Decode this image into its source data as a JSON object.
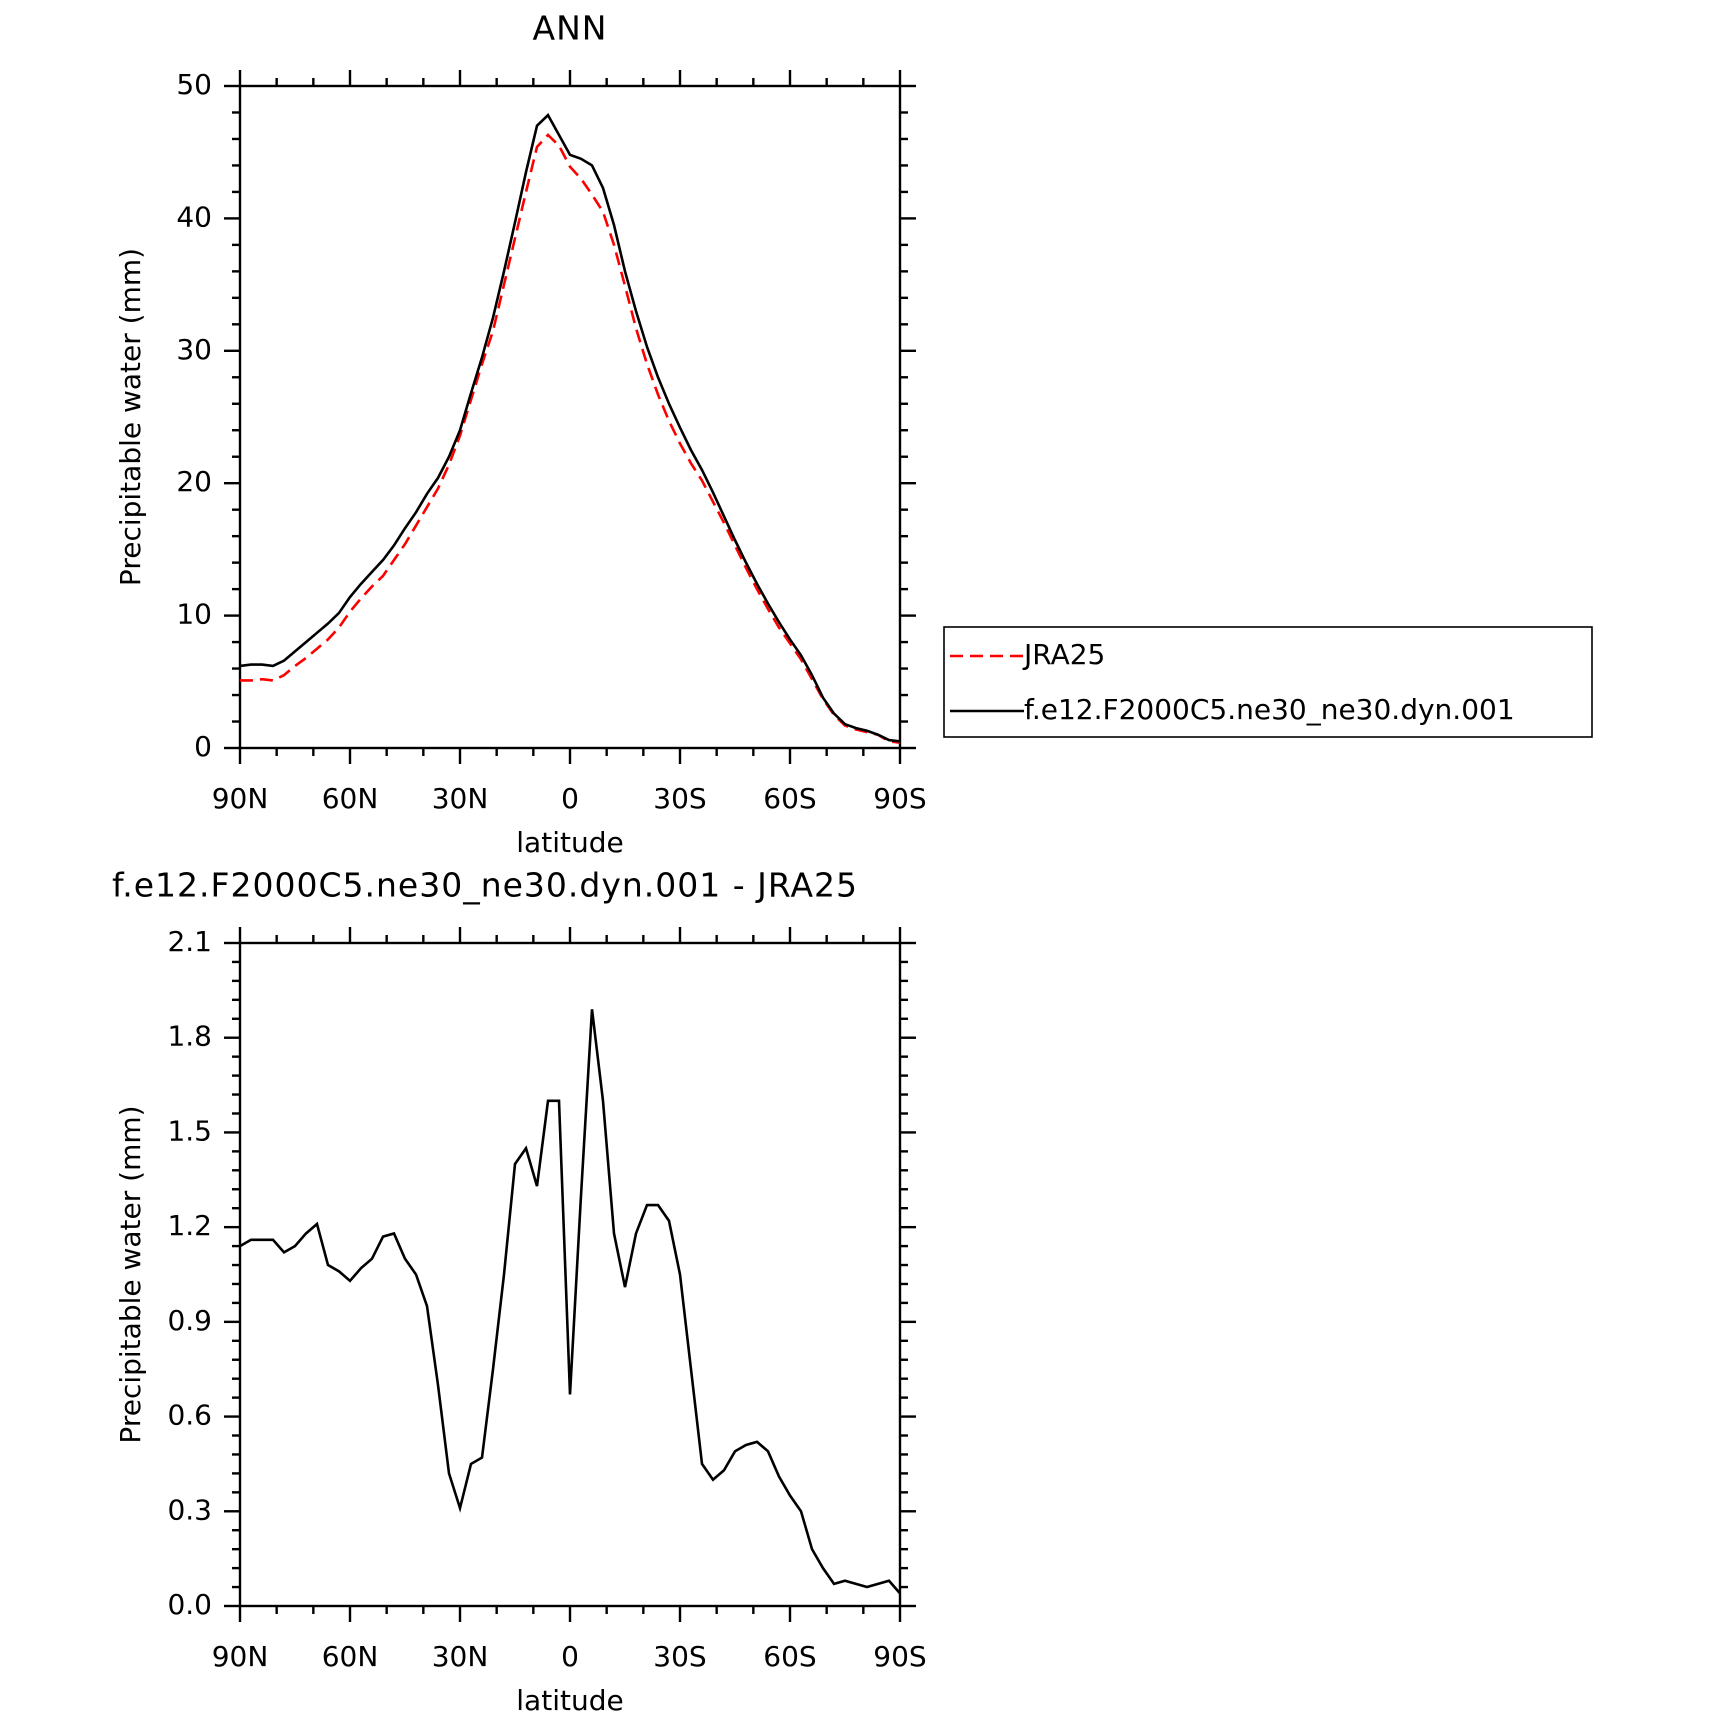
{
  "chart_data": [
    {
      "type": "line",
      "title": "ANN",
      "xlabel": "latitude",
      "ylabel": "Precipitable water (mm)",
      "x": [
        90,
        87,
        84,
        81,
        78,
        75,
        72,
        69,
        66,
        63,
        60,
        57,
        54,
        51,
        48,
        45,
        42,
        39,
        36,
        33,
        30,
        27,
        24,
        21,
        18,
        15,
        12,
        9,
        6,
        3,
        0,
        -3,
        -6,
        -9,
        -12,
        -15,
        -18,
        -21,
        -24,
        -27,
        -30,
        -33,
        -36,
        -39,
        -42,
        -45,
        -48,
        -51,
        -54,
        -57,
        -60,
        -63,
        -66,
        -69,
        -72,
        -75,
        -78,
        -81,
        -84,
        -87,
        -90
      ],
      "xlim": [
        90,
        -90
      ],
      "xticks": [
        {
          "value": 90,
          "label": "90N"
        },
        {
          "value": 60,
          "label": "60N"
        },
        {
          "value": 30,
          "label": "30N"
        },
        0,
        {
          "value": -30,
          "label": "30S"
        },
        {
          "value": -60,
          "label": "60S"
        },
        {
          "value": -90,
          "label": "90S"
        }
      ],
      "ylim": [
        0,
        50
      ],
      "yticks": [
        0,
        10,
        20,
        30,
        40,
        50
      ],
      "legend": "right",
      "series": [
        {
          "name": "JRA25",
          "color": "#ff0000",
          "dash": true,
          "values": [
            5.1,
            5.1,
            5.2,
            5.1,
            5.5,
            6.2,
            6.8,
            7.5,
            8.2,
            9.1,
            10.3,
            11.3,
            12.2,
            13.0,
            14.2,
            15.4,
            16.8,
            18.2,
            19.6,
            21.4,
            23.6,
            26.3,
            29.0,
            31.5,
            35,
            38.5,
            42,
            45.4,
            46.3,
            45.5,
            43.9,
            43.0,
            41.8,
            40.5,
            38,
            34.9,
            31.7,
            29,
            26.7,
            24.7,
            23.0,
            21.5,
            20.2,
            18.6,
            17.0,
            15.3,
            13.6,
            12.0,
            10.5,
            9.1,
            7.9,
            6.7,
            5.2,
            3.7,
            2.5,
            1.7,
            1.4,
            1.2,
            1.0,
            0.5,
            0.4
          ]
        },
        {
          "name": "f.e12.F2000C5.ne30_ne30.dyn.001",
          "color": "#000000",
          "dash": false,
          "values": [
            6.2,
            6.3,
            6.3,
            6.2,
            6.6,
            7.3,
            8.0,
            8.7,
            9.4,
            10.2,
            11.4,
            12.4,
            13.3,
            14.2,
            15.3,
            16.6,
            17.8,
            19.2,
            20.4,
            22.0,
            24.0,
            26.8,
            29.5,
            32.5,
            36,
            39.7,
            43.5,
            47.0,
            47.8,
            46.3,
            44.8,
            44.5,
            44.0,
            42.3,
            39.5,
            36.0,
            33.0,
            30.3,
            28.0,
            26.0,
            24.2,
            22.5,
            21.0,
            19.3,
            17.5,
            15.7,
            14.0,
            12.4,
            10.9,
            9.5,
            8.2,
            7.0,
            5.5,
            3.8,
            2.6,
            1.8,
            1.5,
            1.3,
            1.0,
            0.6,
            0.5
          ]
        }
      ]
    },
    {
      "type": "line",
      "title": "f.e12.F2000C5.ne30_ne30.dyn.001 - JRA25",
      "xlabel": "latitude",
      "ylabel": "Precipitable water (mm)",
      "x": [
        90,
        87,
        84,
        81,
        78,
        75,
        72,
        69,
        66,
        63,
        60,
        57,
        54,
        51,
        48,
        45,
        42,
        39,
        36,
        33,
        30,
        27,
        24,
        21,
        18,
        15,
        12,
        9,
        6,
        3,
        0,
        -3,
        -6,
        -9,
        -12,
        -15,
        -18,
        -21,
        -24,
        -27,
        -30,
        -33,
        -36,
        -39,
        -42,
        -45,
        -48,
        -51,
        -54,
        -57,
        -60,
        -63,
        -66,
        -69,
        -72,
        -75,
        -78,
        -81,
        -84,
        -87,
        -90
      ],
      "xlim": [
        90,
        -90
      ],
      "xticks": [
        {
          "value": 90,
          "label": "90N"
        },
        {
          "value": 60,
          "label": "60N"
        },
        {
          "value": 30,
          "label": "30N"
        },
        0,
        {
          "value": -30,
          "label": "30S"
        },
        {
          "value": -60,
          "label": "60S"
        },
        {
          "value": -90,
          "label": "90S"
        }
      ],
      "ylim": [
        0,
        2.1
      ],
      "yticks": [
        {
          "value": 0,
          "label": "0.0"
        },
        0.3,
        0.6,
        0.9,
        1.2,
        1.5,
        1.8,
        2.1
      ],
      "series": [
        {
          "color": "#000000",
          "dash": false,
          "values": [
            1.14,
            1.16,
            1.16,
            1.16,
            1.12,
            1.14,
            1.18,
            1.21,
            1.08,
            1.06,
            1.03,
            1.07,
            1.1,
            1.17,
            1.18,
            1.1,
            1.05,
            0.95,
            0.7,
            0.42,
            0.31,
            0.45,
            0.47,
            0.75,
            1.05,
            1.4,
            1.45,
            1.33,
            1.6,
            1.6,
            0.67,
            1.3,
            1.89,
            1.6,
            1.18,
            1.01,
            1.18,
            1.27,
            1.27,
            1.22,
            1.05,
            0.75,
            0.45,
            0.4,
            0.43,
            0.49,
            0.51,
            0.52,
            0.49,
            0.41,
            0.35,
            0.3,
            0.18,
            0.12,
            0.07,
            0.08,
            0.07,
            0.06,
            0.07,
            0.08,
            0.04
          ]
        }
      ]
    }
  ]
}
